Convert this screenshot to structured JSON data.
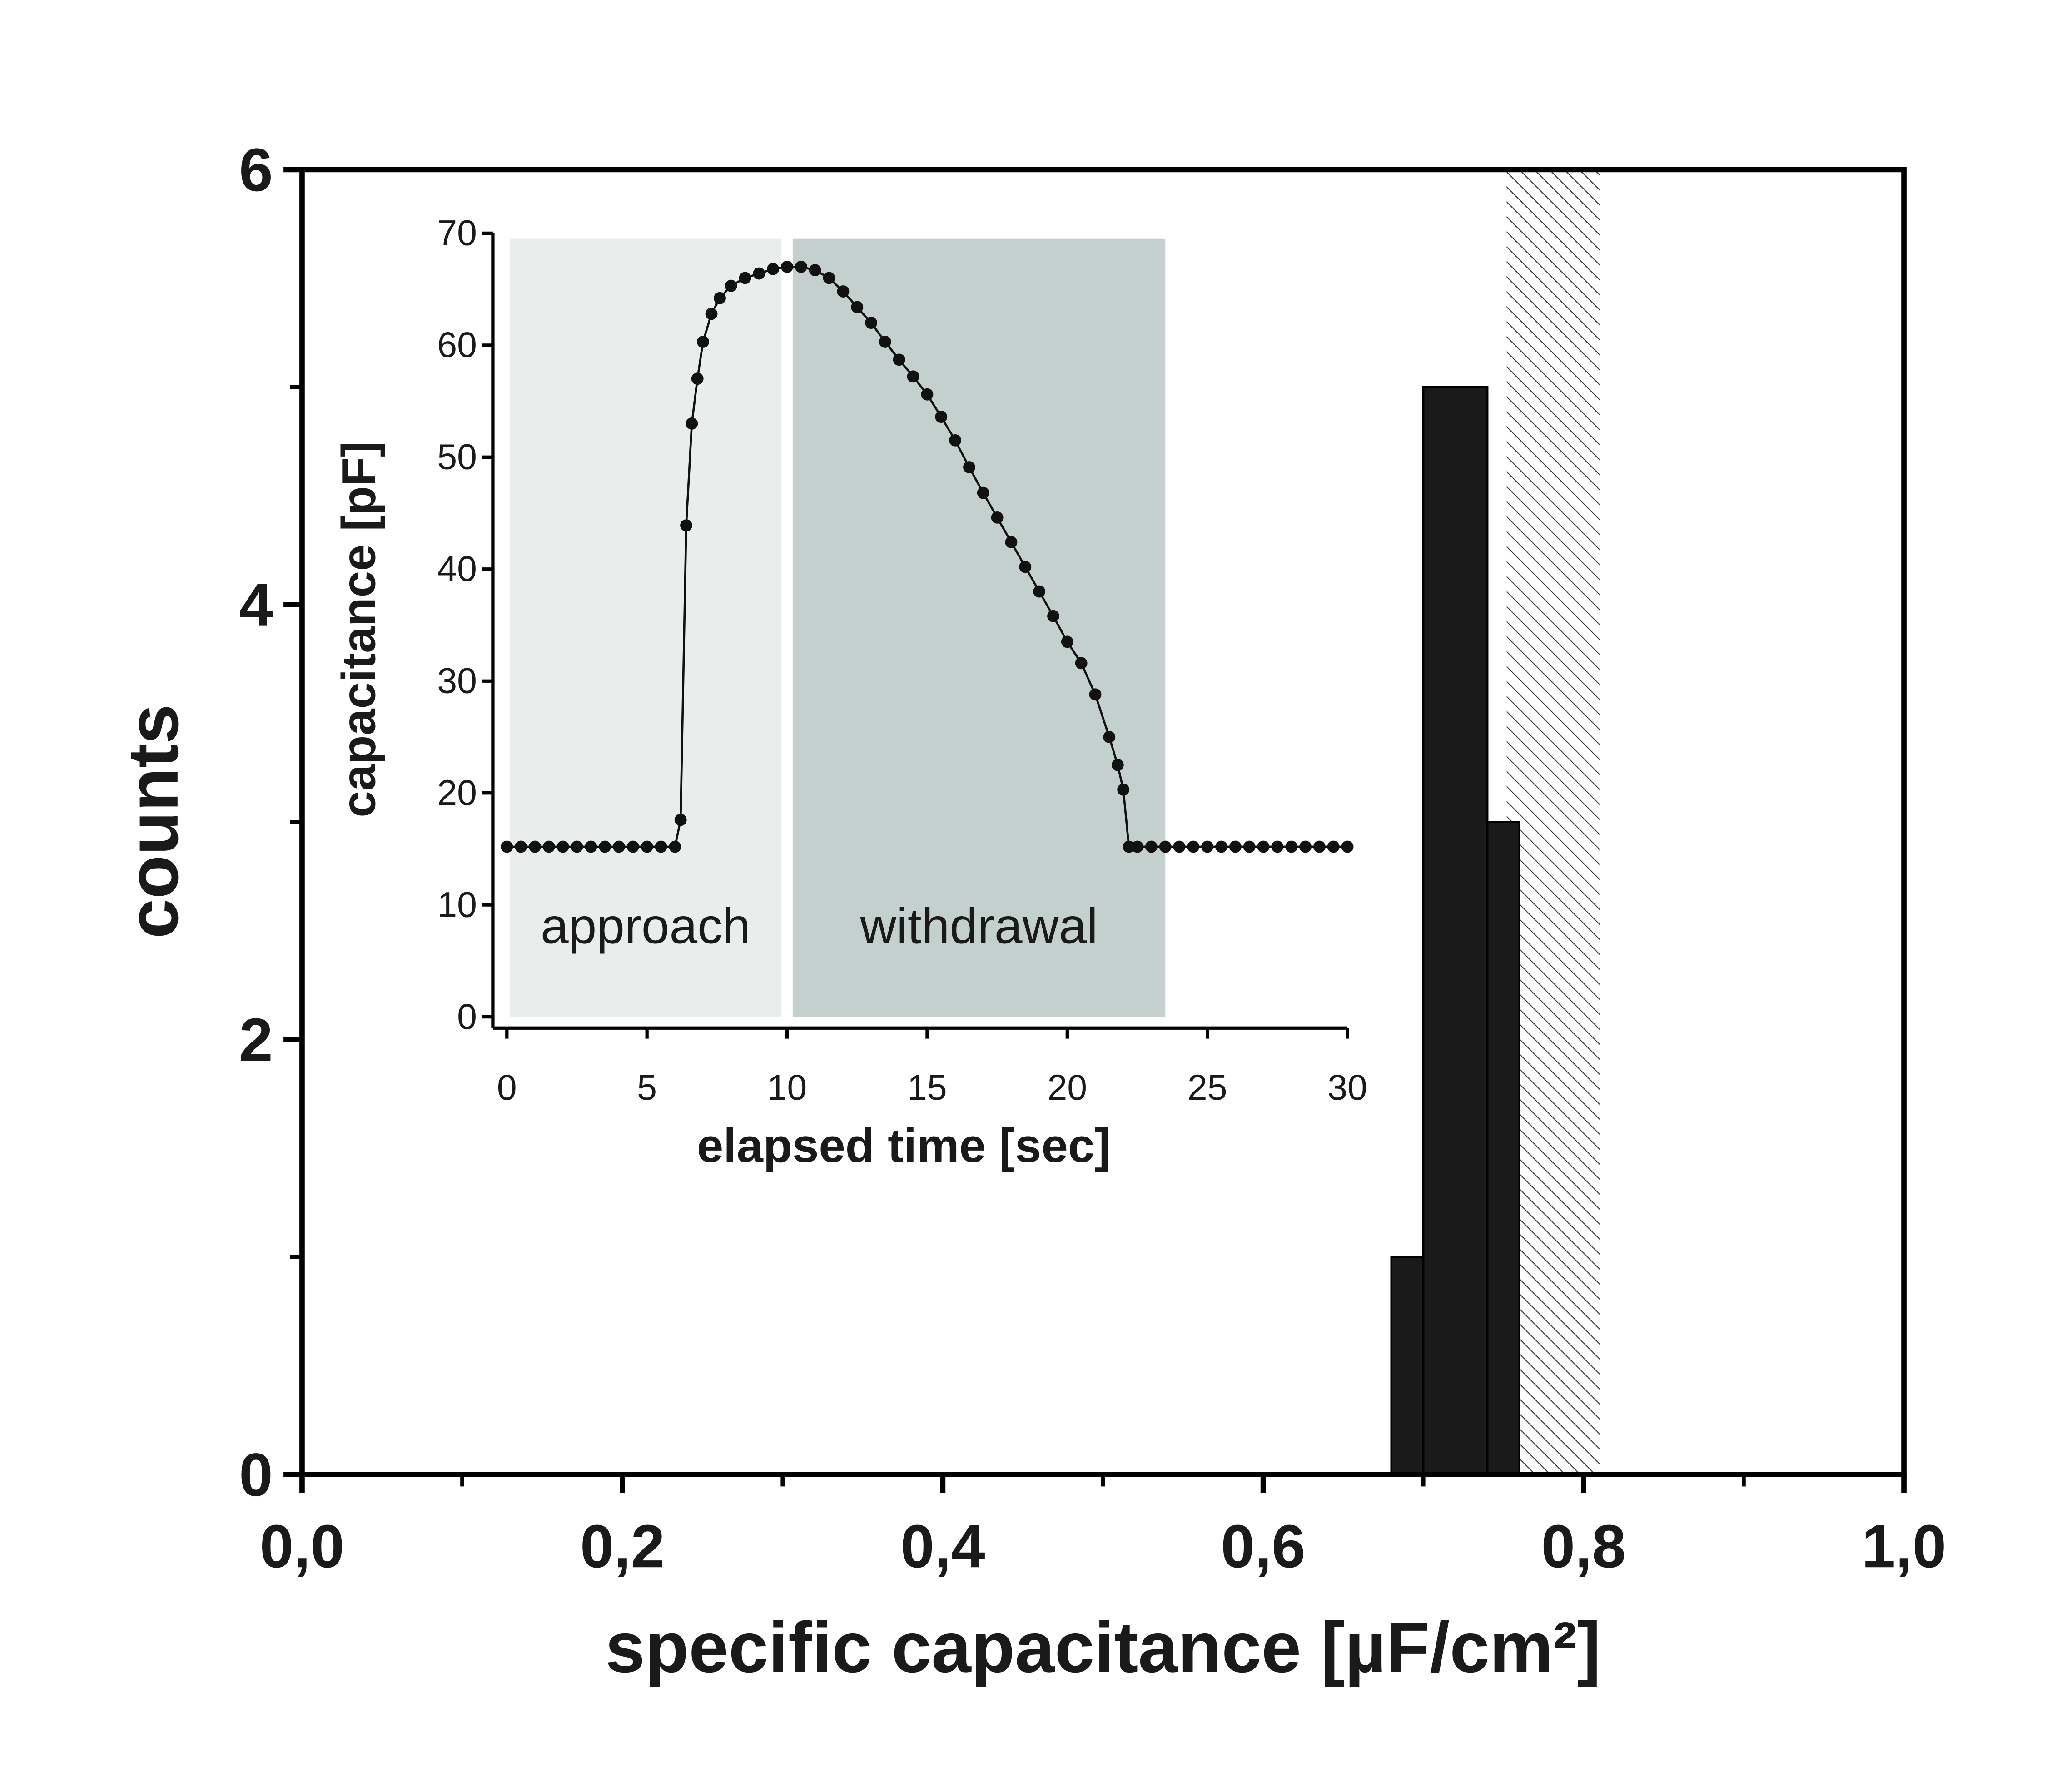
{
  "chart_data": [
    {
      "type": "histogram",
      "xlabel": "specific capacitance [µF/cm²]",
      "ylabel": "counts",
      "bins": [
        0.68,
        0.7,
        0.74,
        0.76
      ],
      "counts": [
        1,
        5,
        3
      ],
      "color": "#1a1a1a",
      "hatched_band": [
        0.752,
        0.81
      ],
      "xlim": [
        0,
        1
      ],
      "ylim": [
        0,
        6
      ],
      "xticks": [
        {
          "value": 0,
          "label": "0,0"
        },
        {
          "value": 0.2,
          "label": "0,2"
        },
        {
          "value": 0.4,
          "label": "0,4"
        },
        {
          "value": 0.6,
          "label": "0,6"
        },
        {
          "value": 0.8,
          "label": "0,8"
        },
        {
          "value": 1,
          "label": "1,0"
        }
      ],
      "yticks": [
        0,
        2,
        4,
        6
      ]
    },
    {
      "type": "line",
      "xlabel": "elapsed time [sec]",
      "ylabel": "capacitance [pF]",
      "color": "#111111",
      "markers": true,
      "regions": [
        {
          "label": "approach",
          "x": [
            0.1,
            9.8
          ],
          "y": [
            0,
            69.5
          ],
          "color": "#e9eeec"
        },
        {
          "label": "withdrawal",
          "x": [
            10.2,
            23.5
          ],
          "y": [
            0,
            69.5
          ],
          "color": "#c4d0cd"
        }
      ],
      "x": [
        0,
        0.5,
        1,
        1.5,
        2,
        2.5,
        3,
        3.5,
        4,
        4.5,
        5,
        5.5,
        6,
        6.2,
        6.4,
        6.6,
        6.8,
        7,
        7.3,
        7.6,
        8,
        8.5,
        9,
        9.5,
        10,
        10.5,
        11,
        11.5,
        12,
        12.5,
        13,
        13.5,
        14,
        14.5,
        15,
        15.5,
        16,
        16.5,
        17,
        17.5,
        18,
        18.5,
        19,
        19.5,
        20,
        20.5,
        21,
        21.5,
        21.8,
        22,
        22.2,
        22.5,
        23,
        23.5,
        24,
        24.5,
        25,
        25.5,
        26,
        26.5,
        27,
        27.5,
        28,
        28.5,
        29,
        29.5,
        30
      ],
      "values": [
        15.2,
        15.2,
        15.2,
        15.2,
        15.2,
        15.2,
        15.2,
        15.2,
        15.2,
        15.2,
        15.2,
        15.2,
        15.2,
        17.6,
        43.9,
        53,
        57,
        60.3,
        62.8,
        64.2,
        65.3,
        66,
        66.4,
        66.8,
        67,
        67,
        66.7,
        66,
        64.8,
        63.4,
        62,
        60.3,
        58.7,
        57.2,
        55.6,
        53.6,
        51.5,
        49.1,
        46.8,
        44.6,
        42.4,
        40.2,
        38,
        35.8,
        33.5,
        31.6,
        28.8,
        25,
        22.5,
        20.3,
        15.2,
        15.2,
        15.2,
        15.2,
        15.2,
        15.2,
        15.2,
        15.2,
        15.2,
        15.2,
        15.2,
        15.2,
        15.2,
        15.2,
        15.2,
        15.2,
        15.2
      ],
      "xlim": [
        -0.5,
        30
      ],
      "ylim": [
        -1,
        70
      ],
      "xticks": [
        0,
        5,
        10,
        15,
        20,
        25,
        30
      ],
      "yticks": [
        0,
        10,
        20,
        30,
        40,
        50,
        60,
        70
      ]
    }
  ]
}
